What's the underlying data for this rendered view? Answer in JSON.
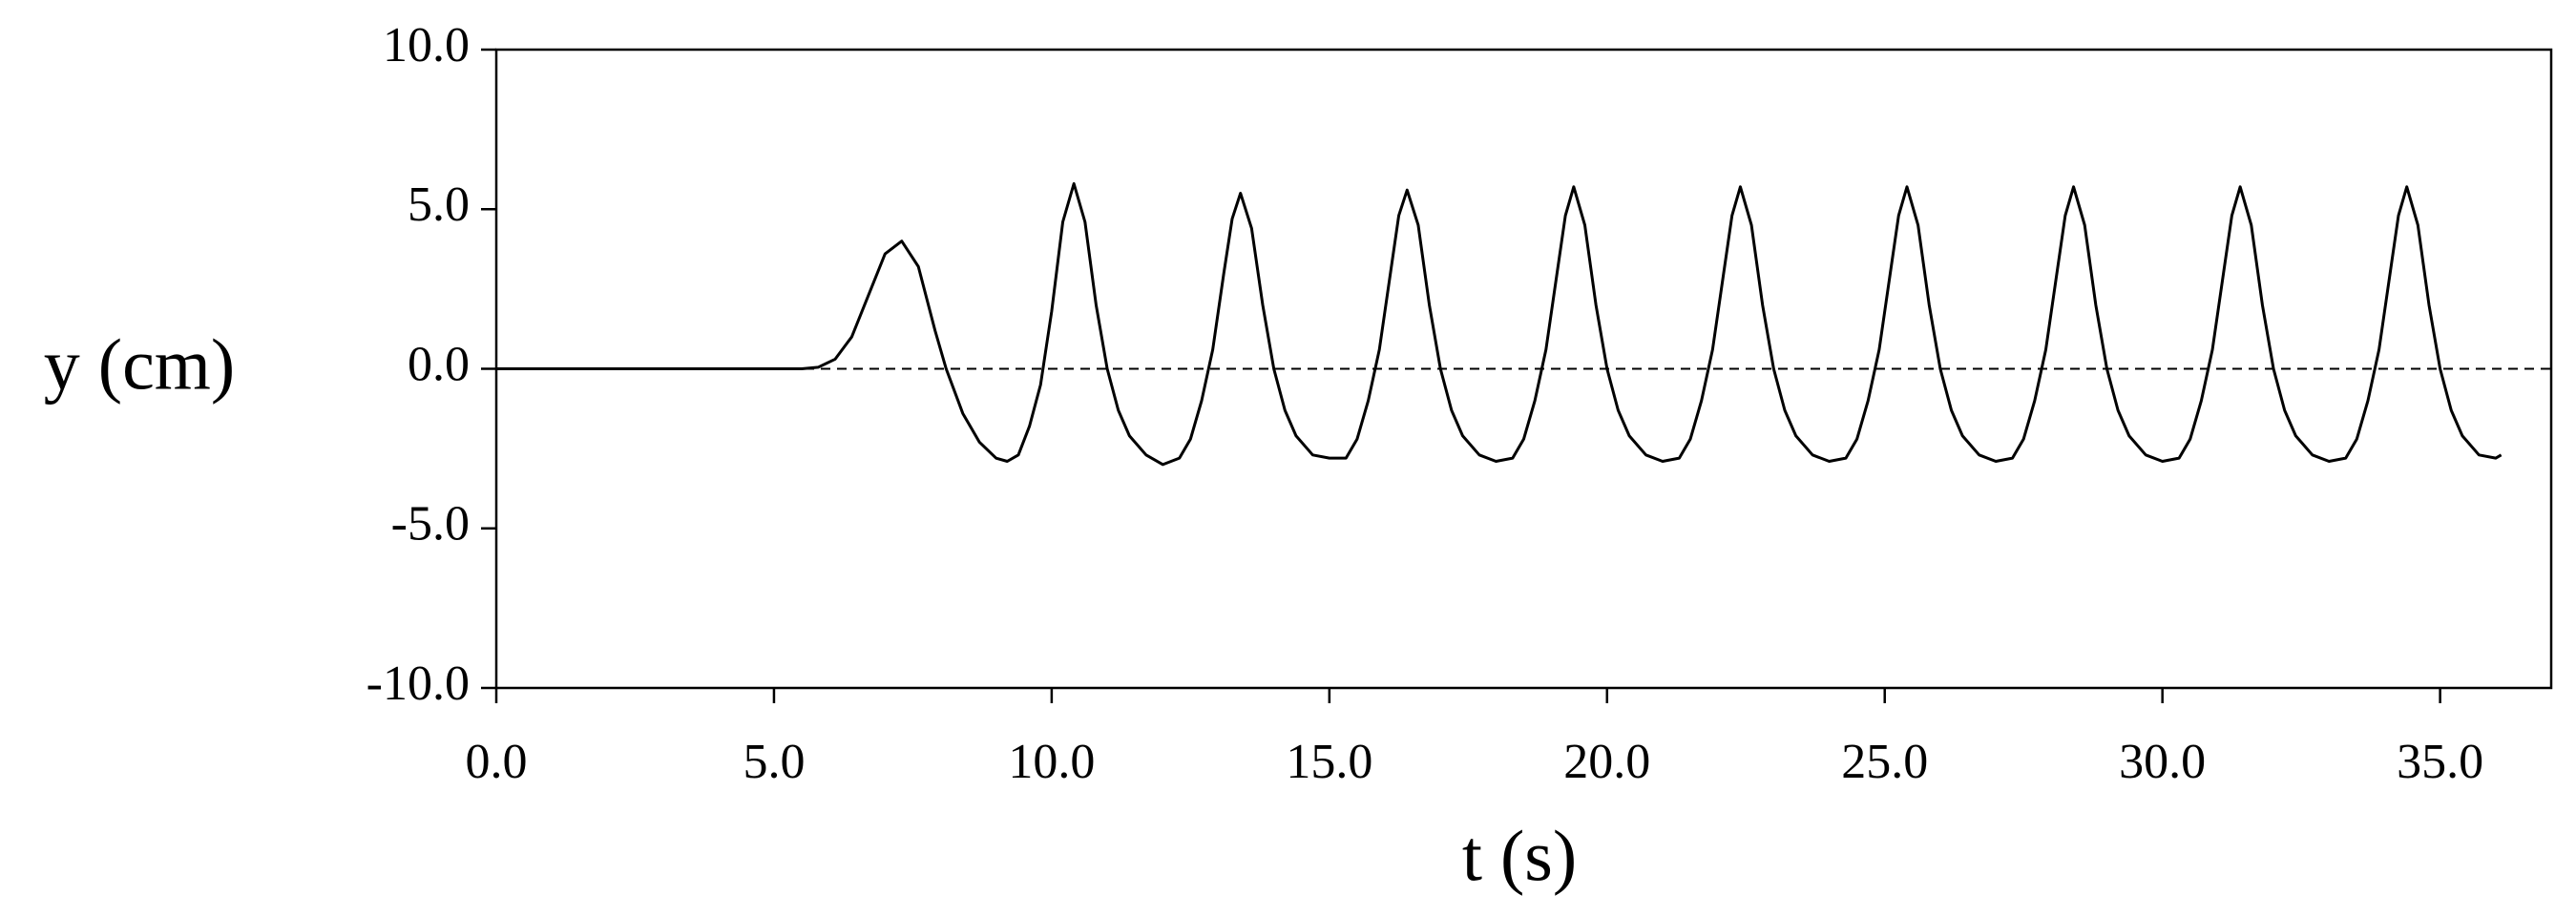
{
  "chart_data": {
    "type": "line",
    "x_label": "t (s)",
    "y_label": "y (cm)",
    "x": [
      0,
      5.0,
      5.5,
      5.8,
      6.1,
      6.4,
      6.7,
      7.0,
      7.3,
      7.6,
      7.9,
      8.1,
      8.4,
      8.7,
      9.0,
      9.2,
      9.4,
      9.6,
      9.8,
      10.0,
      10.2,
      10.4,
      10.6,
      10.8,
      11.0,
      11.2,
      11.4,
      11.7,
      12.0,
      12.3,
      12.5,
      12.7,
      12.9,
      13.1,
      13.25,
      13.4,
      13.6,
      13.8,
      14.0,
      14.2,
      14.4,
      14.7,
      15.0,
      15.3,
      15.5,
      15.7,
      15.9,
      16.1,
      16.25,
      16.4,
      16.6,
      16.8,
      17.0,
      17.2,
      17.4,
      17.7,
      18.0,
      18.3,
      18.5,
      18.7,
      18.9,
      19.1,
      19.25,
      19.4,
      19.6,
      19.8,
      20.0,
      20.2,
      20.4,
      20.7,
      21.0,
      21.3,
      21.5,
      21.7,
      21.9,
      22.1,
      22.25,
      22.4,
      22.6,
      22.8,
      23.0,
      23.2,
      23.4,
      23.7,
      24.0,
      24.3,
      24.5,
      24.7,
      24.9,
      25.1,
      25.25,
      25.4,
      25.6,
      25.8,
      26.0,
      26.2,
      26.4,
      26.7,
      27.0,
      27.3,
      27.5,
      27.7,
      27.9,
      28.1,
      28.25,
      28.4,
      28.6,
      28.8,
      29.0,
      29.2,
      29.4,
      29.7,
      30.0,
      30.3,
      30.5,
      30.7,
      30.9,
      31.1,
      31.25,
      31.4,
      31.6,
      31.8,
      32.0,
      32.2,
      32.4,
      32.7,
      33.0,
      33.3,
      33.5,
      33.7,
      33.9,
      34.1,
      34.25,
      34.4,
      34.6,
      34.8,
      35.0,
      35.2,
      35.4,
      35.7,
      36.0,
      36.1
    ],
    "series": [
      {
        "color": "#000000",
        "values": [
          0,
          0,
          0,
          0.05,
          0.3,
          1.0,
          2.3,
          3.6,
          4.0,
          3.2,
          1.2,
          0,
          -1.4,
          -2.3,
          -2.8,
          -2.9,
          -2.7,
          -1.8,
          -0.5,
          1.8,
          4.6,
          5.8,
          4.6,
          2.0,
          0,
          -1.3,
          -2.1,
          -2.7,
          -3.0,
          -2.8,
          -2.2,
          -1.0,
          0.6,
          3.0,
          4.7,
          5.5,
          4.4,
          2.0,
          0,
          -1.3,
          -2.1,
          -2.7,
          -2.8,
          -2.8,
          -2.2,
          -1.0,
          0.6,
          3.0,
          4.8,
          5.6,
          4.5,
          2.0,
          0,
          -1.3,
          -2.1,
          -2.7,
          -2.9,
          -2.8,
          -2.2,
          -1.0,
          0.6,
          3.0,
          4.8,
          5.7,
          4.5,
          2.0,
          0,
          -1.3,
          -2.1,
          -2.7,
          -2.9,
          -2.8,
          -2.2,
          -1.0,
          0.6,
          3.0,
          4.8,
          5.7,
          4.5,
          2.0,
          0,
          -1.3,
          -2.1,
          -2.7,
          -2.9,
          -2.8,
          -2.2,
          -1.0,
          0.6,
          3.0,
          4.8,
          5.7,
          4.5,
          2.0,
          0,
          -1.3,
          -2.1,
          -2.7,
          -2.9,
          -2.8,
          -2.2,
          -1.0,
          0.6,
          3.0,
          4.8,
          5.7,
          4.5,
          2.0,
          0,
          -1.3,
          -2.1,
          -2.7,
          -2.9,
          -2.8,
          -2.2,
          -1.0,
          0.6,
          3.0,
          4.8,
          5.7,
          4.5,
          2.0,
          0,
          -1.3,
          -2.1,
          -2.7,
          -2.9,
          -2.8,
          -2.2,
          -1.0,
          0.6,
          3.0,
          4.8,
          5.7,
          4.5,
          2.0,
          0,
          -1.3,
          -2.1,
          -2.7,
          -2.8,
          -2.7
        ]
      }
    ],
    "reference_line": {
      "y": 0,
      "dashed": true
    },
    "xlim": [
      0,
      37
    ],
    "ylim": [
      -10,
      10
    ],
    "xticks": [
      {
        "value": 0,
        "label": "0.0"
      },
      {
        "value": 5,
        "label": "5.0"
      },
      {
        "value": 10,
        "label": "10.0"
      },
      {
        "value": 15,
        "label": "15.0"
      },
      {
        "value": 20,
        "label": "20.0"
      },
      {
        "value": 25,
        "label": "25.0"
      },
      {
        "value": 30,
        "label": "30.0"
      },
      {
        "value": 35,
        "label": "35.0"
      }
    ],
    "yticks": [
      {
        "value": -10,
        "label": "-10.0"
      },
      {
        "value": -5,
        "label": "-5.0"
      },
      {
        "value": 0,
        "label": "0.0"
      },
      {
        "value": 5,
        "label": "5.0"
      },
      {
        "value": 10,
        "label": "10.0"
      }
    ]
  }
}
